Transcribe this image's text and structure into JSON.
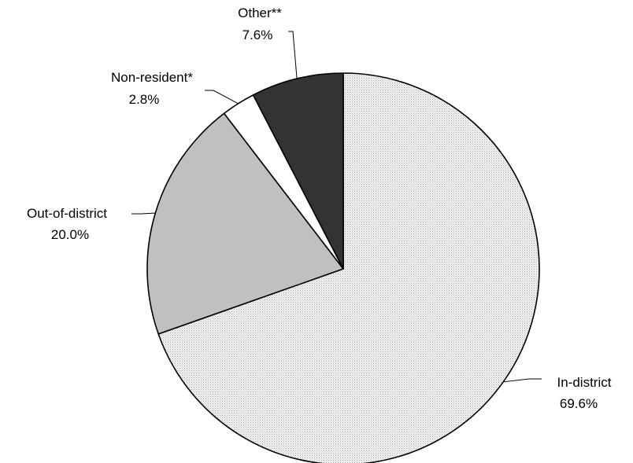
{
  "chart_data": {
    "type": "pie",
    "title": "",
    "start": "12 o'clock, clockwise",
    "slices": [
      {
        "label": "In-district",
        "value": 69.6,
        "value_label": "69.6%",
        "fill": "dotted-light-gray"
      },
      {
        "label": "Out-of-district",
        "value": 20.0,
        "value_label": "20.0%",
        "fill": "#c0c0c0"
      },
      {
        "label": "Non-resident*",
        "value": 2.8,
        "value_label": "2.8%",
        "fill": "#ffffff"
      },
      {
        "label": "Other**",
        "value": 7.6,
        "value_label": "7.6%",
        "fill": "#333333"
      }
    ]
  }
}
